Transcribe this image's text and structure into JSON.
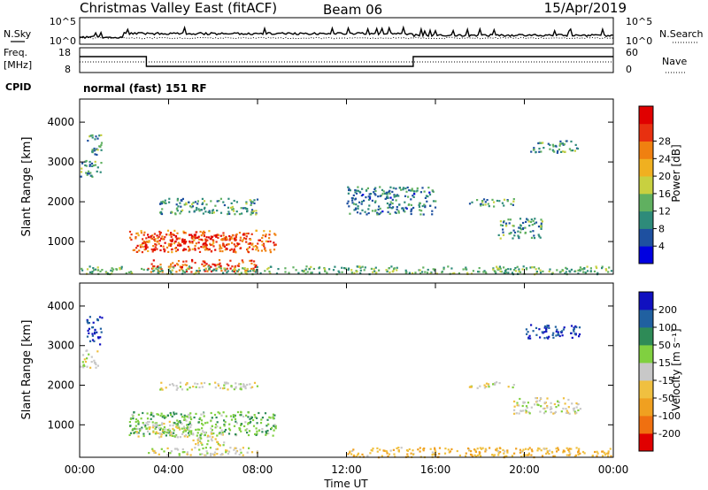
{
  "header": {
    "title": "Christmas Valley East (fitACF)",
    "beam": "Beam 06",
    "date": "15/Apr/2019"
  },
  "noise_panel": {
    "left_label": "N.Sky",
    "right_label": "N.Search",
    "left_ticks": [
      "10^5",
      "10^0"
    ],
    "right_ticks": [
      "10^5",
      "10^0"
    ]
  },
  "freq_panel": {
    "left_label_1": "Freq.",
    "left_label_2": "[MHz]",
    "right_label": "Nave",
    "left_ticks": [
      "18",
      "8"
    ],
    "right_ticks": [
      "60",
      "0"
    ],
    "cpid_label": "CPID",
    "mode_text": "normal (fast) 151 RF"
  },
  "power_panel": {
    "ylabel": "Slant Range [km]"
  },
  "velocity_panel": {
    "ylabel": "Slant Range [km]"
  },
  "y_ticks": [
    "1000",
    "2000",
    "3000",
    "4000"
  ],
  "time_axis": {
    "label": "Time UT",
    "ticks": [
      "00:00",
      "04:00",
      "08:00",
      "12:00",
      "16:00",
      "20:00",
      "00:00"
    ]
  },
  "power_colorbar": {
    "label": "Power [dB]",
    "ticks": [
      "4",
      "8",
      "12",
      "16",
      "20",
      "24",
      "28"
    ],
    "colors": [
      "#0000e0",
      "#1e50a0",
      "#2e8b7a",
      "#60b060",
      "#c8d040",
      "#f0b020",
      "#f08010",
      "#e83010",
      "#e00000"
    ]
  },
  "velocity_colorbar": {
    "label": "Velocity [m s⁻¹]",
    "ticks": [
      "200",
      "100",
      "50",
      "15",
      "-15",
      "-50",
      "-100",
      "-200"
    ],
    "colors": [
      "#1010c0",
      "#2060a0",
      "#2e8b57",
      "#80d040",
      "#c8c8c8",
      "#f0c040",
      "#f0a020",
      "#f07010",
      "#e00000"
    ]
  },
  "chart_data": [
    {
      "type": "heatmap",
      "title": "Power [dB]",
      "xlabel": "Time UT",
      "ylabel": "Slant Range [km]",
      "xlim": [
        0,
        24
      ],
      "ylim": [
        180,
        4580
      ],
      "regions": [
        {
          "t0": 2.2,
          "t1": 8.8,
          "r0": 750,
          "r1": 1300,
          "value": 24
        },
        {
          "t0": 2.8,
          "t1": 7.2,
          "r0": 800,
          "r1": 1200,
          "value": 28
        },
        {
          "t0": 3.0,
          "t1": 8.0,
          "r0": 260,
          "r1": 560,
          "value": 26
        },
        {
          "t0": 0.0,
          "t1": 1.0,
          "r0": 2650,
          "r1": 3050,
          "value": 10
        },
        {
          "t0": 0.3,
          "t1": 1.0,
          "r0": 3200,
          "r1": 3700,
          "value": 10
        },
        {
          "t0": 20.2,
          "t1": 22.5,
          "r0": 3250,
          "r1": 3550,
          "value": 10
        },
        {
          "t0": 17.5,
          "t1": 19.5,
          "r0": 1900,
          "r1": 2100,
          "value": 10
        },
        {
          "t0": 18.8,
          "t1": 20.8,
          "r0": 1100,
          "r1": 1600,
          "value": 10
        },
        {
          "t0": 3.5,
          "t1": 8.0,
          "r0": 1700,
          "r1": 2100,
          "value": 10
        },
        {
          "t0": 12.0,
          "t1": 16.0,
          "r0": 1700,
          "r1": 2400,
          "value": 8
        },
        {
          "t0": 0.0,
          "t1": 24.0,
          "r0": 200,
          "r1": 400,
          "value": 12
        }
      ]
    },
    {
      "type": "heatmap",
      "title": "Velocity [m s⁻¹]",
      "xlabel": "Time UT",
      "ylabel": "Slant Range [km]",
      "xlim": [
        0,
        24
      ],
      "ylim": [
        180,
        4580
      ],
      "regions": [
        {
          "t0": 2.2,
          "t1": 8.8,
          "r0": 750,
          "r1": 1350,
          "value": 40
        },
        {
          "t0": 2.5,
          "t1": 5.0,
          "r0": 700,
          "r1": 1100,
          "value": 0
        },
        {
          "t0": 5.0,
          "t1": 6.5,
          "r0": 500,
          "r1": 900,
          "value": 0
        },
        {
          "t0": 3.0,
          "t1": 8.0,
          "r0": 250,
          "r1": 450,
          "value": 0
        },
        {
          "t0": 0.3,
          "t1": 1.0,
          "r0": 3050,
          "r1": 3750,
          "value": 200
        },
        {
          "t0": 0.0,
          "t1": 0.8,
          "r0": 2450,
          "r1": 2900,
          "value": 0
        },
        {
          "t0": 20.0,
          "t1": 22.5,
          "r0": 3200,
          "r1": 3550,
          "value": 200
        },
        {
          "t0": 12.0,
          "t1": 24.0,
          "r0": 200,
          "r1": 450,
          "value": -40
        },
        {
          "t0": 19.5,
          "t1": 22.5,
          "r0": 1300,
          "r1": 1700,
          "value": 0
        },
        {
          "t0": 17.5,
          "t1": 19.5,
          "r0": 1950,
          "r1": 2100,
          "value": 0
        },
        {
          "t0": 3.5,
          "t1": 8.0,
          "r0": 1900,
          "r1": 2100,
          "value": 0
        }
      ]
    }
  ]
}
